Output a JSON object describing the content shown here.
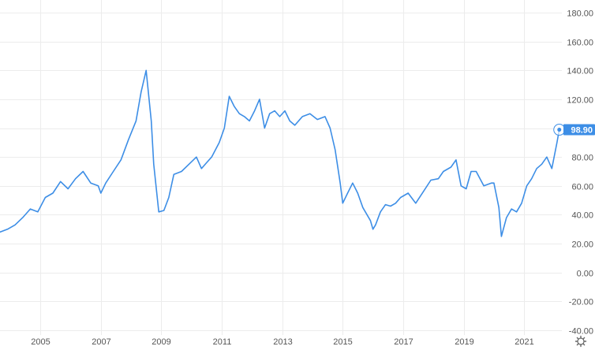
{
  "chart_data": {
    "type": "line",
    "y_ticks": [
      "180.00",
      "160.00",
      "140.00",
      "120.00",
      "100.00",
      "80.00",
      "60.00",
      "40.00",
      "20.00",
      "0.00",
      "-20.00",
      "-40.00"
    ],
    "y_tick_values": [
      180,
      160,
      140,
      120,
      100,
      80,
      60,
      40,
      20,
      0,
      -20,
      -40
    ],
    "x_ticks": [
      "2005",
      "2007",
      "2009",
      "2011",
      "2013",
      "2015",
      "2017",
      "2019",
      "2021"
    ],
    "x_tick_values": [
      "2005-01-01",
      "2007-01-01",
      "2009-01-01",
      "2011-01-01",
      "2013-01-01",
      "2015-01-01",
      "2017-01-01",
      "2019-01-01",
      "2021-01-01"
    ],
    "ylim": [
      -40,
      180
    ],
    "xlim": [
      "2003-09-01",
      "2022-04-01"
    ],
    "grid": true,
    "colors": {
      "line": "#3d8ee6",
      "grid": "#ececec",
      "badge": "#3d8ee6"
    },
    "last_value_label": "98.90",
    "series": [
      {
        "x": [
          "2003-09",
          "2003-12",
          "2004-03",
          "2004-06",
          "2004-09",
          "2004-12",
          "2005-03",
          "2005-06",
          "2005-09",
          "2005-12",
          "2006-03",
          "2006-06",
          "2006-09",
          "2006-12",
          "2007-01",
          "2007-03",
          "2007-06",
          "2007-09",
          "2007-12",
          "2008-03",
          "2008-05",
          "2008-07",
          "2008-09",
          "2008-10",
          "2008-12",
          "2009-02",
          "2009-04",
          "2009-06",
          "2009-09",
          "2009-12",
          "2010-03",
          "2010-05",
          "2010-07",
          "2010-09",
          "2010-12",
          "2011-02",
          "2011-04",
          "2011-06",
          "2011-08",
          "2011-10",
          "2011-12",
          "2012-02",
          "2012-04",
          "2012-06",
          "2012-08",
          "2012-10",
          "2012-12",
          "2013-02",
          "2013-04",
          "2013-06",
          "2013-09",
          "2013-12",
          "2014-03",
          "2014-06",
          "2014-08",
          "2014-10",
          "2014-12",
          "2015-01",
          "2015-03",
          "2015-05",
          "2015-07",
          "2015-09",
          "2015-12",
          "2016-01",
          "2016-02",
          "2016-04",
          "2016-06",
          "2016-08",
          "2016-10",
          "2016-12",
          "2017-03",
          "2017-06",
          "2017-09",
          "2017-12",
          "2018-03",
          "2018-05",
          "2018-08",
          "2018-10",
          "2018-12",
          "2019-02",
          "2019-04",
          "2019-06",
          "2019-09",
          "2019-12",
          "2020-01",
          "2020-03",
          "2020-04",
          "2020-06",
          "2020-08",
          "2020-10",
          "2020-12",
          "2021-02",
          "2021-04",
          "2021-06",
          "2021-08",
          "2021-10",
          "2021-12",
          "2022-02",
          "2022-03"
        ],
        "y": [
          28,
          30,
          33,
          38,
          44,
          42,
          52,
          55,
          63,
          58,
          65,
          70,
          62,
          60,
          55,
          62,
          70,
          78,
          92,
          105,
          125,
          140,
          105,
          75,
          42,
          43,
          52,
          68,
          70,
          75,
          80,
          72,
          76,
          80,
          90,
          100,
          122,
          115,
          110,
          108,
          105,
          112,
          120,
          100,
          110,
          112,
          108,
          112,
          105,
          102,
          108,
          110,
          106,
          108,
          100,
          85,
          62,
          48,
          55,
          62,
          55,
          45,
          36,
          30,
          33,
          42,
          47,
          46,
          48,
          52,
          55,
          48,
          56,
          64,
          65,
          70,
          73,
          78,
          60,
          58,
          70,
          70,
          60,
          62,
          62,
          45,
          25,
          38,
          44,
          42,
          48,
          60,
          65,
          72,
          75,
          80,
          72,
          90,
          98.9
        ]
      }
    ]
  }
}
